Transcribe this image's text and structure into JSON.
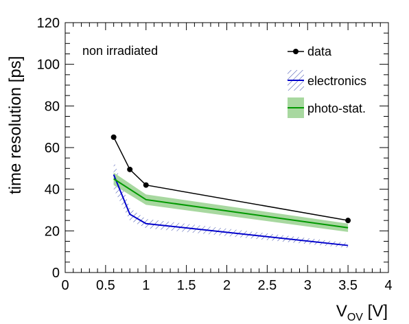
{
  "chart_data": {
    "type": "line",
    "xlabel": "V",
    "xlabel_sub": "OV",
    "xlabel_unit": " [V]",
    "ylabel": "time resolution [ps]",
    "xlim": [
      0,
      4
    ],
    "ylim": [
      0,
      120
    ],
    "x_ticks": [
      "0",
      "0.5",
      "1",
      "1.5",
      "2",
      "2.5",
      "3",
      "3.5",
      "4"
    ],
    "x_tick_values": [
      0,
      0.5,
      1,
      1.5,
      2,
      2.5,
      3,
      3.5,
      4
    ],
    "y_ticks": [
      "0",
      "20",
      "40",
      "60",
      "80",
      "100",
      "120"
    ],
    "y_tick_values": [
      0,
      20,
      40,
      60,
      80,
      100,
      120
    ],
    "grid": false,
    "legend_position": "top-right",
    "annotation": "non irradiated",
    "series": [
      {
        "name": "data",
        "style": "markers-line",
        "color": "#000000",
        "x": [
          0.6,
          0.8,
          1.0,
          3.5
        ],
        "y": [
          65,
          49.5,
          42,
          25
        ]
      },
      {
        "name": "electronics",
        "style": "line-hatched-band",
        "color": "#0000cc",
        "band_color": "#3344aa",
        "x": [
          0.6,
          0.8,
          1.0,
          3.5
        ],
        "y": [
          47,
          28,
          23.5,
          13
        ],
        "band_half_width": [
          7,
          3,
          2.2,
          1.2
        ]
      },
      {
        "name": "photo-stat.",
        "style": "line-filled-band",
        "color": "#009900",
        "band_color": "#a8d8a0",
        "x": [
          0.6,
          1.0,
          3.5
        ],
        "y": [
          45,
          35,
          21.5
        ],
        "band_half_width": [
          3,
          2.5,
          2
        ]
      }
    ]
  }
}
